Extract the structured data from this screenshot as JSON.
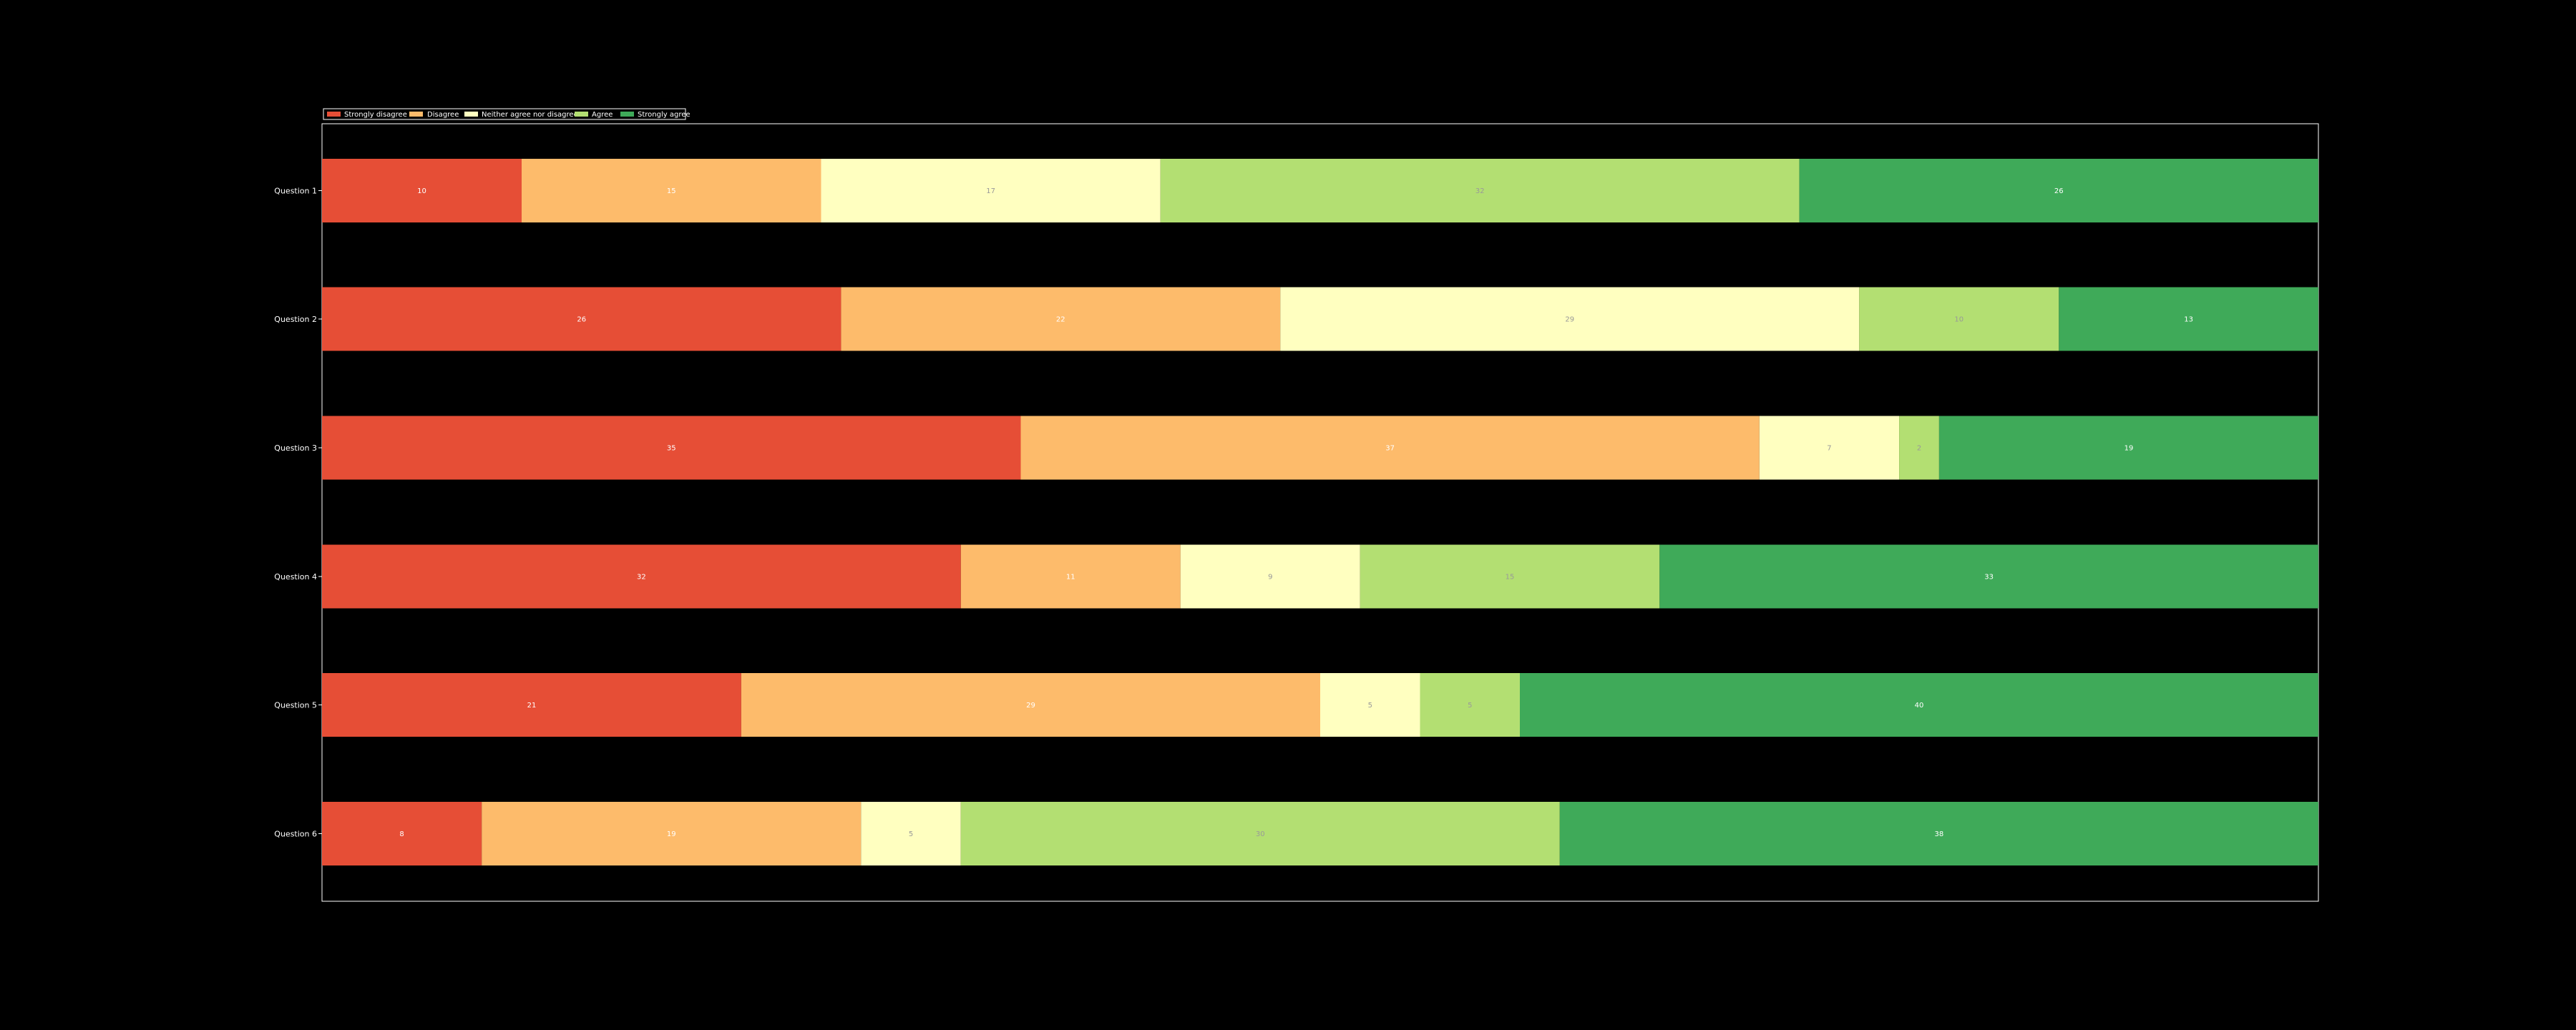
{
  "chart_data": {
    "type": "bar",
    "orientation": "horizontal",
    "stacked": true,
    "categories": [
      "Question 1",
      "Question 2",
      "Question 3",
      "Question 4",
      "Question 5",
      "Question 6"
    ],
    "series": [
      {
        "name": "Strongly disagree",
        "color": "#e64e36",
        "label_color": "#ffffff",
        "values": [
          10,
          26,
          35,
          32,
          21,
          8
        ]
      },
      {
        "name": "Disagree",
        "color": "#fdbb6b",
        "label_color": "#ffffff",
        "values": [
          15,
          22,
          37,
          11,
          29,
          19
        ]
      },
      {
        "name": "Neither agree nor disagree",
        "color": "#ffffc0",
        "label_color": "#999999",
        "values": [
          17,
          29,
          7,
          9,
          5,
          5
        ]
      },
      {
        "name": "Agree",
        "color": "#b3df72",
        "label_color": "#999999",
        "values": [
          32,
          10,
          2,
          15,
          5,
          30
        ]
      },
      {
        "name": "Strongly agree",
        "color": "#3faa59",
        "label_color": "#ffffff",
        "values": [
          26,
          13,
          19,
          33,
          40,
          38
        ]
      }
    ],
    "xlim": [
      0,
      100
    ],
    "x_axis_visible": false,
    "y_axis_inverted": true,
    "grid": false,
    "legend_placement": "top-left, above plot",
    "background": "#000000",
    "axes_edge_color": "#ffffff"
  }
}
